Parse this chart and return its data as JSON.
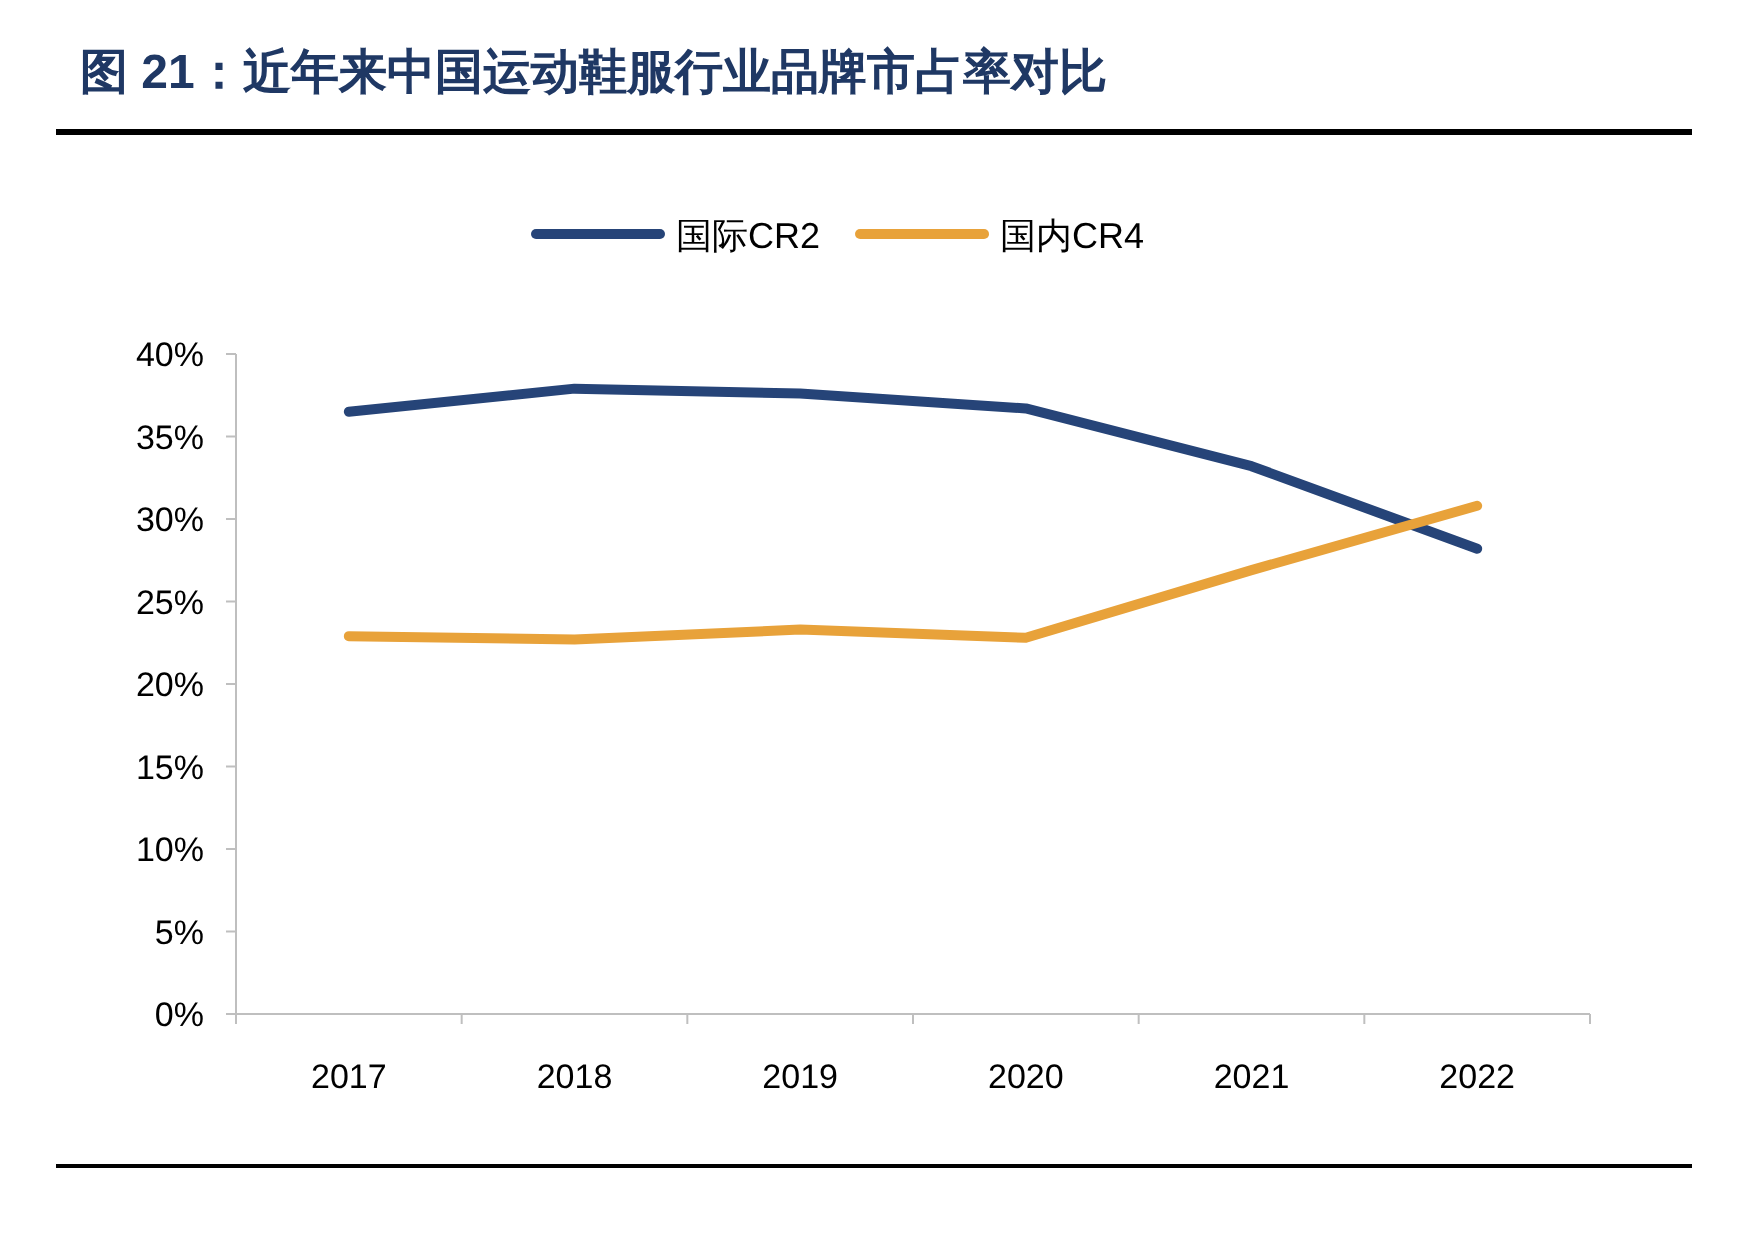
{
  "chart_data": {
    "type": "line",
    "title": "图 21：近年来中国运动鞋服行业品牌市占率对比",
    "categories": [
      "2017",
      "2018",
      "2019",
      "2020",
      "2021",
      "2022"
    ],
    "series": [
      {
        "name": "国际CR2",
        "color": "#264478",
        "values": [
          36.5,
          37.9,
          37.6,
          36.7,
          33.2,
          28.2
        ]
      },
      {
        "name": "国内CR4",
        "color": "#e8a23a",
        "values": [
          22.9,
          22.7,
          23.3,
          22.8,
          26.9,
          30.8
        ]
      }
    ],
    "ylim": [
      0,
      40
    ],
    "yticks": [
      {
        "value": 0,
        "label": "0%"
      },
      {
        "value": 5,
        "label": "5%"
      },
      {
        "value": 10,
        "label": "10%"
      },
      {
        "value": 15,
        "label": "15%"
      },
      {
        "value": 20,
        "label": "20%"
      },
      {
        "value": 25,
        "label": "25%"
      },
      {
        "value": 30,
        "label": "30%"
      },
      {
        "value": 35,
        "label": "35%"
      },
      {
        "value": 40,
        "label": "40%"
      }
    ],
    "grid": false,
    "legend": "top",
    "marker": "none",
    "line_style": "solid"
  }
}
